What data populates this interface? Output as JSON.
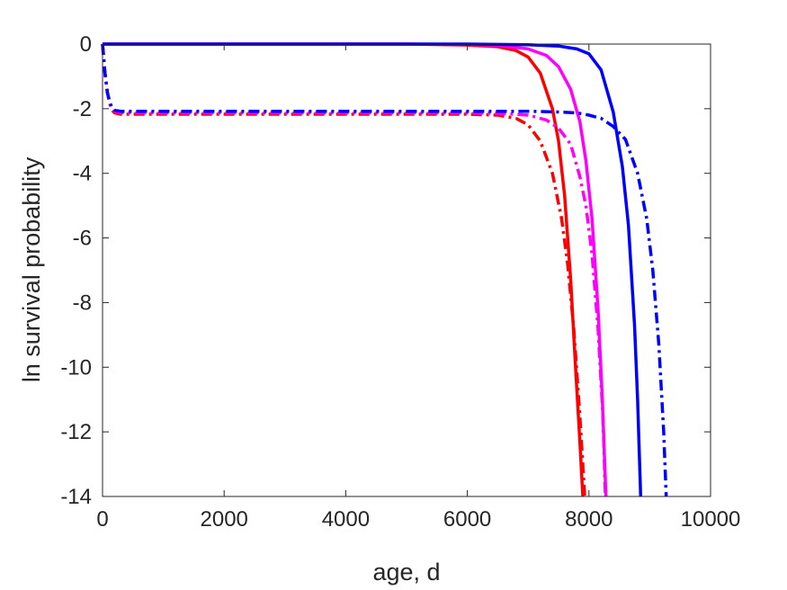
{
  "chart_data": {
    "type": "line",
    "xlabel": "age, d",
    "ylabel": "ln survival probability",
    "xlim": [
      0,
      10000
    ],
    "ylim": [
      -14,
      0
    ],
    "xticks": [
      0,
      2000,
      4000,
      6000,
      8000,
      10000
    ],
    "yticks": [
      0,
      -2,
      -4,
      -6,
      -8,
      -10,
      -12,
      -14
    ],
    "xtick_labels": [
      "0",
      "2000",
      "4000",
      "6000",
      "8000",
      "10000"
    ],
    "ytick_labels": [
      "0",
      "-2",
      "-4",
      "-6",
      "-8",
      "-10",
      "-12",
      "-14"
    ],
    "grid": false,
    "legend": "none",
    "series": [
      {
        "color": "#ff0000",
        "style": "solid",
        "x": [
          0,
          1000,
          2000,
          3000,
          4000,
          5000,
          6000,
          6500,
          6800,
          7000,
          7200,
          7400,
          7500,
          7600,
          7700,
          7780,
          7850,
          7900
        ],
        "y": [
          0,
          0,
          0,
          0,
          0,
          0,
          -0.03,
          -0.08,
          -0.2,
          -0.4,
          -0.9,
          -2.0,
          -3.0,
          -4.7,
          -7.3,
          -10.0,
          -12.3,
          -14
        ]
      },
      {
        "color": "#ff00ff",
        "style": "solid",
        "x": [
          0,
          1000,
          2000,
          3000,
          4000,
          5000,
          6000,
          6500,
          7000,
          7300,
          7500,
          7700,
          7850,
          7950,
          8050,
          8150,
          8220,
          8280
        ],
        "y": [
          0,
          0,
          0,
          0,
          0,
          0,
          -0.01,
          -0.04,
          -0.15,
          -0.35,
          -0.7,
          -1.4,
          -2.4,
          -3.6,
          -5.4,
          -8.2,
          -11.0,
          -14
        ]
      },
      {
        "color": "#0000ff",
        "style": "solid",
        "x": [
          0,
          1000,
          2000,
          3000,
          4000,
          5000,
          6000,
          6500,
          7000,
          7500,
          7800,
          8000,
          8200,
          8400,
          8550,
          8650,
          8750,
          8800,
          8850
        ],
        "y": [
          0,
          0,
          0,
          0,
          0,
          0,
          0,
          -0.01,
          -0.02,
          -0.06,
          -0.15,
          -0.3,
          -0.8,
          -2.1,
          -3.8,
          -5.6,
          -8.7,
          -11.0,
          -14
        ]
      },
      {
        "color": "#ff0000",
        "style": "dashdot",
        "x": [
          0,
          40,
          80,
          120,
          160,
          200,
          300,
          500,
          1000,
          2000,
          3000,
          4000,
          5000,
          6000,
          6500,
          6800,
          7000,
          7200,
          7400,
          7550,
          7650,
          7750,
          7850,
          7930
        ],
        "y": [
          0,
          -0.9,
          -1.5,
          -1.85,
          -2.05,
          -2.13,
          -2.17,
          -2.17,
          -2.17,
          -2.17,
          -2.17,
          -2.17,
          -2.17,
          -2.17,
          -2.2,
          -2.3,
          -2.5,
          -3.0,
          -4.0,
          -5.4,
          -6.8,
          -8.8,
          -11.5,
          -14
        ]
      },
      {
        "color": "#ff00ff",
        "style": "dashdot",
        "x": [
          0,
          40,
          80,
          120,
          160,
          200,
          300,
          500,
          1000,
          2000,
          3000,
          4000,
          5000,
          6000,
          6500,
          7000,
          7300,
          7500,
          7700,
          7850,
          7950,
          8050,
          8150,
          8230,
          8270
        ],
        "y": [
          0,
          -0.9,
          -1.5,
          -1.82,
          -2.0,
          -2.08,
          -2.12,
          -2.13,
          -2.13,
          -2.13,
          -2.13,
          -2.13,
          -2.13,
          -2.13,
          -2.14,
          -2.2,
          -2.35,
          -2.6,
          -3.1,
          -4.1,
          -5.0,
          -6.5,
          -8.8,
          -11.5,
          -14
        ]
      },
      {
        "color": "#0000ff",
        "style": "dashdot",
        "x": [
          0,
          40,
          80,
          120,
          160,
          200,
          300,
          500,
          1000,
          2000,
          3000,
          4000,
          5000,
          6000,
          7000,
          7500,
          7800,
          8000,
          8200,
          8400,
          8600,
          8800,
          8950,
          9050,
          9150,
          9230,
          9270
        ],
        "y": [
          0,
          -0.9,
          -1.5,
          -1.8,
          -1.98,
          -2.05,
          -2.08,
          -2.08,
          -2.08,
          -2.08,
          -2.08,
          -2.08,
          -2.08,
          -2.08,
          -2.08,
          -2.1,
          -2.13,
          -2.2,
          -2.3,
          -2.55,
          -2.95,
          -4.0,
          -5.4,
          -7.0,
          -9.3,
          -12.0,
          -14
        ]
      }
    ]
  }
}
